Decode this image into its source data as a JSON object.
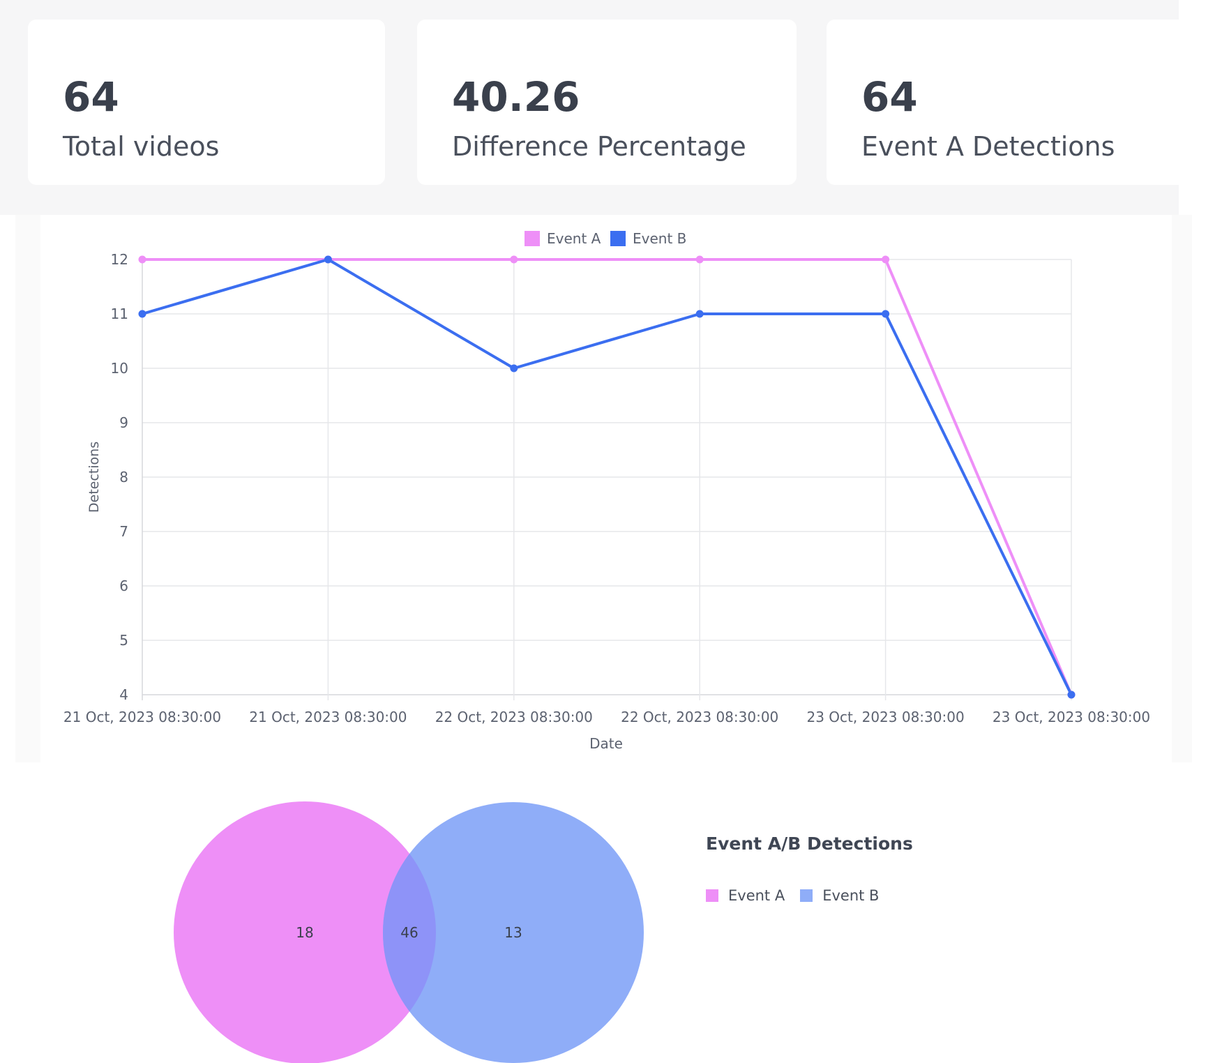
{
  "stats": [
    {
      "value": "64",
      "label": "Total videos"
    },
    {
      "value": "40.26",
      "label": "Difference Percentage"
    },
    {
      "value": "64",
      "label": "Event A Detections"
    }
  ],
  "chart_data": [
    {
      "type": "line",
      "xlabel": "Date",
      "ylabel": "Detections",
      "x": [
        "21 Oct, 2023 08:30:00",
        "21 Oct, 2023 08:30:00",
        "22 Oct, 2023 08:30:00",
        "22 Oct, 2023 08:30:00",
        "23 Oct, 2023 08:30:00",
        "23 Oct, 2023 08:30:00"
      ],
      "ylim": [
        4,
        12
      ],
      "yticks": [
        4,
        5,
        6,
        7,
        8,
        9,
        10,
        11,
        12
      ],
      "grid": true,
      "legend_position": "top-center",
      "series": [
        {
          "name": "Event A",
          "color": "#ee8ff7",
          "values": [
            12,
            12,
            12,
            12,
            12,
            4
          ]
        },
        {
          "name": "Event B",
          "color": "#3b6ef0",
          "values": [
            11,
            12,
            10,
            11,
            11,
            4
          ]
        }
      ]
    },
    {
      "type": "venn",
      "title": "Event A/B Detections",
      "sets": [
        {
          "name": "Event A",
          "color": "#ee8ff7",
          "only": 18
        },
        {
          "name": "Event B",
          "color": "#8fadf8",
          "only": 13
        }
      ],
      "intersection": 46,
      "legend_position": "right"
    }
  ]
}
